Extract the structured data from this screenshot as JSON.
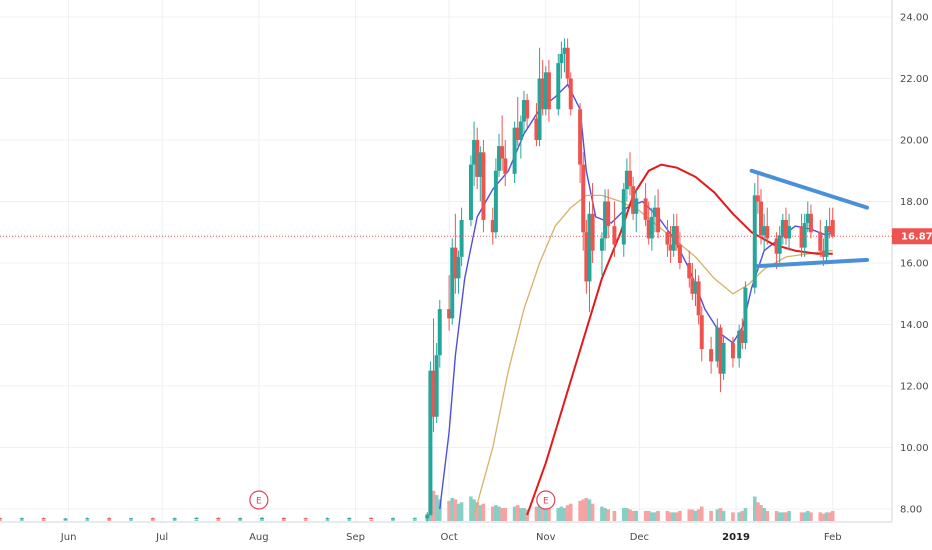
{
  "chart_data": {
    "type": "candlestick",
    "y_axis": {
      "ticks": [
        "24.00",
        "22.00",
        "20.00",
        "18.00",
        "16.00",
        "14.00",
        "12.00",
        "10.00",
        "8.00"
      ],
      "tick_values": [
        24,
        22,
        20,
        18,
        16,
        14,
        12,
        10,
        8
      ],
      "range": [
        7.8,
        24.3
      ],
      "position": "right"
    },
    "x_axis": {
      "labels": [
        "Jun",
        "Jul",
        "Aug",
        "Sep",
        "Oct",
        "Nov",
        "Dec",
        "2019",
        "Feb"
      ],
      "bold_labels": [
        "2019"
      ],
      "range": [
        "2018-05-10",
        "2019-02-20"
      ]
    },
    "grid": true,
    "current_price": {
      "value": 16.87,
      "label": "16.87",
      "color": "#ef5350"
    },
    "colors": {
      "up": "#26a69a",
      "down": "#ef5350",
      "vol_up": "#86cfc6",
      "vol_down": "#f5a3a3",
      "ma_fast": "#4f4fd8",
      "ma_mid": "#d4b26a",
      "ma_slow": "#e31a1c",
      "trendline": "#4a90d9",
      "event": "#e0405a"
    },
    "events": [
      {
        "date": "2018-08-01",
        "label": "E"
      },
      {
        "date": "2018-11-01",
        "label": "E"
      }
    ],
    "trendlines": [
      {
        "from": {
          "date": "2019-01-06",
          "price": 19.0
        },
        "to": {
          "date": "2019-02-12",
          "price": 17.8
        }
      },
      {
        "from": {
          "date": "2019-01-08",
          "price": 15.9
        },
        "to": {
          "date": "2019-02-12",
          "price": 16.1
        }
      }
    ],
    "moving_averages": [
      {
        "key": "fast",
        "points": [
          [
            "2018-09-28",
            8.0
          ],
          [
            "2018-10-01",
            10.5
          ],
          [
            "2018-10-03",
            13.0
          ],
          [
            "2018-10-06",
            15.5
          ],
          [
            "2018-10-10",
            17.5
          ],
          [
            "2018-10-15",
            18.4
          ],
          [
            "2018-10-20",
            19.0
          ],
          [
            "2018-10-25",
            20.2
          ],
          [
            "2018-10-30",
            21.0
          ],
          [
            "2018-11-04",
            21.4
          ],
          [
            "2018-11-08",
            21.8
          ],
          [
            "2018-11-12",
            21.0
          ],
          [
            "2018-11-14",
            19.0
          ],
          [
            "2018-11-17",
            17.5
          ],
          [
            "2018-11-22",
            17.3
          ],
          [
            "2018-11-27",
            17.8
          ],
          [
            "2018-12-02",
            18.0
          ],
          [
            "2018-12-07",
            17.5
          ],
          [
            "2018-12-12",
            16.8
          ],
          [
            "2018-12-17",
            15.8
          ],
          [
            "2018-12-22",
            14.5
          ],
          [
            "2018-12-27",
            13.7
          ],
          [
            "2018-12-31",
            13.4
          ],
          [
            "2019-01-03",
            13.9
          ],
          [
            "2019-01-06",
            15.2
          ],
          [
            "2019-01-10",
            16.4
          ],
          [
            "2019-01-15",
            16.8
          ],
          [
            "2019-01-20",
            17.2
          ],
          [
            "2019-01-25",
            17.1
          ],
          [
            "2019-01-30",
            16.9
          ],
          [
            "2019-02-01",
            17.0
          ]
        ]
      },
      {
        "key": "mid",
        "points": [
          [
            "2018-10-09",
            7.8
          ],
          [
            "2018-10-15",
            10.0
          ],
          [
            "2018-10-20",
            12.5
          ],
          [
            "2018-10-25",
            14.5
          ],
          [
            "2018-10-30",
            16.0
          ],
          [
            "2018-11-04",
            17.2
          ],
          [
            "2018-11-09",
            17.8
          ],
          [
            "2018-11-14",
            18.2
          ],
          [
            "2018-11-19",
            18.2
          ],
          [
            "2018-11-25",
            18.0
          ],
          [
            "2018-12-01",
            17.7
          ],
          [
            "2018-12-07",
            17.2
          ],
          [
            "2018-12-13",
            16.7
          ],
          [
            "2018-12-19",
            16.2
          ],
          [
            "2018-12-25",
            15.5
          ],
          [
            "2018-12-31",
            15.0
          ],
          [
            "2019-01-05",
            15.3
          ],
          [
            "2019-01-10",
            15.8
          ],
          [
            "2019-01-17",
            16.2
          ],
          [
            "2019-01-24",
            16.3
          ],
          [
            "2019-01-31",
            16.4
          ],
          [
            "2019-02-01",
            16.4
          ]
        ]
      },
      {
        "key": "slow",
        "points": [
          [
            "2018-10-26",
            7.8
          ],
          [
            "2018-11-01",
            9.5
          ],
          [
            "2018-11-07",
            11.5
          ],
          [
            "2018-11-13",
            13.5
          ],
          [
            "2018-11-19",
            15.5
          ],
          [
            "2018-11-25",
            17.0
          ],
          [
            "2018-11-29",
            18.2
          ],
          [
            "2018-12-04",
            19.0
          ],
          [
            "2018-12-08",
            19.2
          ],
          [
            "2018-12-13",
            19.1
          ],
          [
            "2018-12-19",
            18.8
          ],
          [
            "2018-12-25",
            18.3
          ],
          [
            "2018-12-31",
            17.6
          ],
          [
            "2019-01-06",
            17.0
          ],
          [
            "2019-01-13",
            16.6
          ],
          [
            "2019-01-20",
            16.4
          ],
          [
            "2019-01-27",
            16.3
          ],
          [
            "2019-02-01",
            16.3
          ]
        ]
      }
    ],
    "candles": [
      [
        "2018-05-10",
        7.7,
        7.72,
        7.66,
        7.69,
        2
      ],
      [
        "2018-05-17",
        7.69,
        7.72,
        7.65,
        7.7,
        2
      ],
      [
        "2018-05-24",
        7.7,
        7.73,
        7.67,
        7.68,
        2
      ],
      [
        "2018-05-31",
        7.68,
        7.71,
        7.65,
        7.69,
        3
      ],
      [
        "2018-06-07",
        7.69,
        7.72,
        7.66,
        7.7,
        2
      ],
      [
        "2018-06-14",
        7.7,
        7.73,
        7.67,
        7.69,
        3
      ],
      [
        "2018-06-21",
        7.69,
        7.71,
        7.66,
        7.7,
        2
      ],
      [
        "2018-06-28",
        7.7,
        7.72,
        7.67,
        7.68,
        3
      ],
      [
        "2018-07-05",
        7.68,
        7.72,
        7.66,
        7.7,
        3
      ],
      [
        "2018-07-12",
        7.7,
        7.73,
        7.67,
        7.71,
        2
      ],
      [
        "2018-07-19",
        7.71,
        7.73,
        7.68,
        7.69,
        3
      ],
      [
        "2018-07-26",
        7.69,
        7.72,
        7.66,
        7.7,
        4
      ],
      [
        "2018-08-02",
        7.7,
        7.74,
        7.67,
        7.71,
        4
      ],
      [
        "2018-08-09",
        7.71,
        7.73,
        7.68,
        7.7,
        3
      ],
      [
        "2018-08-16",
        7.7,
        7.72,
        7.67,
        7.69,
        2
      ],
      [
        "2018-08-23",
        7.69,
        7.72,
        7.66,
        7.7,
        2
      ],
      [
        "2018-08-30",
        7.7,
        7.72,
        7.67,
        7.71,
        3
      ],
      [
        "2018-09-06",
        7.71,
        7.73,
        7.68,
        7.69,
        2
      ],
      [
        "2018-09-13",
        7.69,
        7.72,
        7.66,
        7.7,
        3
      ],
      [
        "2018-09-20",
        7.7,
        7.72,
        7.67,
        7.7,
        2
      ],
      [
        "2018-09-24",
        7.7,
        7.9,
        7.6,
        7.8,
        10
      ],
      [
        "2018-09-25",
        7.8,
        12.8,
        7.8,
        12.5,
        48
      ],
      [
        "2018-09-26",
        12.5,
        14.2,
        10.5,
        11.0,
        42
      ],
      [
        "2018-09-27",
        11.0,
        13.4,
        10.8,
        13.0,
        36
      ],
      [
        "2018-09-28",
        13.0,
        14.8,
        12.6,
        14.5,
        30
      ],
      [
        "2018-10-01",
        14.5,
        15.6,
        13.8,
        14.2,
        28
      ],
      [
        "2018-10-02",
        14.2,
        16.8,
        14.0,
        16.5,
        32
      ],
      [
        "2018-10-03",
        16.5,
        17.6,
        15.0,
        15.5,
        30
      ],
      [
        "2018-10-04",
        15.5,
        16.4,
        15.0,
        16.2,
        24
      ],
      [
        "2018-10-05",
        16.2,
        17.8,
        15.9,
        17.4,
        26
      ],
      [
        "2018-10-08",
        17.4,
        19.5,
        17.2,
        19.2,
        34
      ],
      [
        "2018-10-09",
        19.2,
        20.6,
        18.5,
        20.0,
        30
      ],
      [
        "2018-10-10",
        20.0,
        20.4,
        18.4,
        18.8,
        26
      ],
      [
        "2018-10-11",
        18.8,
        19.8,
        18.0,
        19.6,
        22
      ],
      [
        "2018-10-12",
        19.6,
        20.0,
        17.0,
        17.4,
        24
      ],
      [
        "2018-10-15",
        17.4,
        17.8,
        16.6,
        17.0,
        20
      ],
      [
        "2018-10-16",
        17.0,
        19.4,
        16.8,
        19.0,
        22
      ],
      [
        "2018-10-17",
        19.0,
        20.2,
        18.8,
        19.8,
        20
      ],
      [
        "2018-10-18",
        19.8,
        20.8,
        19.0,
        19.4,
        18
      ],
      [
        "2018-10-19",
        19.4,
        20.0,
        18.5,
        18.9,
        18
      ],
      [
        "2018-10-22",
        18.9,
        20.6,
        18.6,
        20.4,
        20
      ],
      [
        "2018-10-23",
        20.4,
        21.4,
        19.8,
        20.0,
        22
      ],
      [
        "2018-10-24",
        20.0,
        20.8,
        19.4,
        20.6,
        18
      ],
      [
        "2018-10-25",
        20.6,
        21.6,
        20.2,
        21.3,
        18
      ],
      [
        "2018-10-26",
        21.3,
        21.5,
        20.4,
        20.7,
        16
      ],
      [
        "2018-10-29",
        20.7,
        21.2,
        19.8,
        20.0,
        20
      ],
      [
        "2018-10-30",
        20.0,
        23.0,
        19.8,
        22.0,
        26
      ],
      [
        "2018-10-31",
        22.0,
        22.6,
        20.8,
        21.0,
        22
      ],
      [
        "2018-11-01",
        21.0,
        22.4,
        20.8,
        22.2,
        20
      ],
      [
        "2018-11-02",
        22.2,
        22.6,
        20.6,
        21.0,
        18
      ],
      [
        "2018-11-05",
        21.0,
        22.8,
        20.8,
        22.5,
        18
      ],
      [
        "2018-11-06",
        22.5,
        23.2,
        22.0,
        22.8,
        20
      ],
      [
        "2018-11-07",
        22.8,
        23.3,
        22.2,
        23.0,
        18
      ],
      [
        "2018-11-08",
        23.0,
        23.3,
        21.8,
        22.0,
        22
      ],
      [
        "2018-11-09",
        22.0,
        22.2,
        20.8,
        21.0,
        24
      ],
      [
        "2018-11-12",
        21.0,
        21.2,
        18.6,
        19.2,
        28
      ],
      [
        "2018-11-13",
        19.2,
        19.6,
        16.4,
        17.0,
        30
      ],
      [
        "2018-11-14",
        17.0,
        17.4,
        15.0,
        15.4,
        32
      ],
      [
        "2018-11-15",
        15.4,
        18.0,
        14.4,
        17.6,
        30
      ],
      [
        "2018-11-16",
        17.6,
        18.6,
        16.0,
        16.4,
        24
      ],
      [
        "2018-11-19",
        16.4,
        17.0,
        15.6,
        16.8,
        20
      ],
      [
        "2018-11-20",
        16.8,
        18.4,
        16.4,
        18.0,
        18
      ],
      [
        "2018-11-21",
        18.0,
        18.4,
        16.8,
        17.2,
        16
      ],
      [
        "2018-11-23",
        17.2,
        18.0,
        16.2,
        16.6,
        14
      ],
      [
        "2018-11-26",
        16.6,
        18.6,
        16.2,
        18.4,
        18
      ],
      [
        "2018-11-27",
        18.4,
        19.4,
        18.0,
        19.0,
        18
      ],
      [
        "2018-11-28",
        19.0,
        19.6,
        18.2,
        18.5,
        16
      ],
      [
        "2018-11-29",
        18.5,
        18.8,
        17.4,
        17.6,
        14
      ],
      [
        "2018-11-30",
        17.6,
        18.4,
        17.0,
        18.1,
        14
      ],
      [
        "2018-12-03",
        18.1,
        18.6,
        17.2,
        17.4,
        14
      ],
      [
        "2018-12-04",
        17.4,
        18.0,
        16.6,
        16.8,
        14
      ],
      [
        "2018-12-05",
        16.8,
        17.8,
        16.4,
        17.5,
        12
      ],
      [
        "2018-12-06",
        17.5,
        18.2,
        17.0,
        17.8,
        12
      ],
      [
        "2018-12-07",
        17.8,
        18.4,
        16.8,
        17.0,
        14
      ],
      [
        "2018-12-10",
        17.0,
        17.4,
        16.2,
        16.6,
        14
      ],
      [
        "2018-12-11",
        16.6,
        17.2,
        16.0,
        16.4,
        12
      ],
      [
        "2018-12-12",
        16.4,
        17.6,
        16.2,
        17.2,
        12
      ],
      [
        "2018-12-13",
        17.2,
        17.6,
        16.4,
        16.6,
        12
      ],
      [
        "2018-12-14",
        16.6,
        17.0,
        15.8,
        16.0,
        14
      ],
      [
        "2018-12-17",
        16.0,
        16.4,
        15.2,
        15.5,
        16
      ],
      [
        "2018-12-18",
        15.5,
        16.0,
        14.8,
        15.0,
        16
      ],
      [
        "2018-12-19",
        15.0,
        15.8,
        14.6,
        15.4,
        14
      ],
      [
        "2018-12-20",
        15.4,
        15.6,
        14.0,
        14.3,
        16
      ],
      [
        "2018-12-21",
        14.3,
        14.6,
        12.8,
        13.2,
        20
      ],
      [
        "2018-12-24",
        13.2,
        13.6,
        12.4,
        12.8,
        14
      ],
      [
        "2018-12-26",
        12.8,
        14.2,
        12.6,
        13.9,
        16
      ],
      [
        "2018-12-27",
        13.9,
        14.0,
        11.8,
        12.4,
        18
      ],
      [
        "2018-12-28",
        12.4,
        13.6,
        12.2,
        13.4,
        14
      ],
      [
        "2018-12-31",
        13.4,
        13.6,
        12.6,
        12.9,
        12
      ],
      [
        "2019-01-02",
        12.9,
        14.0,
        12.6,
        13.8,
        12
      ],
      [
        "2019-01-03",
        13.8,
        14.2,
        13.2,
        13.4,
        14
      ],
      [
        "2019-01-04",
        13.4,
        15.4,
        13.2,
        15.2,
        18
      ],
      [
        "2019-01-07",
        15.2,
        18.6,
        15.0,
        18.2,
        34
      ],
      [
        "2019-01-08",
        18.2,
        19.0,
        17.6,
        18.0,
        26
      ],
      [
        "2019-01-09",
        18.0,
        18.4,
        16.6,
        16.9,
        22
      ],
      [
        "2019-01-10",
        16.9,
        17.6,
        16.4,
        17.2,
        18
      ],
      [
        "2019-01-11",
        17.2,
        17.8,
        16.6,
        16.8,
        14
      ],
      [
        "2019-01-14",
        16.8,
        17.0,
        15.8,
        16.3,
        14
      ],
      [
        "2019-01-15",
        16.3,
        17.2,
        16.0,
        16.9,
        12
      ],
      [
        "2019-01-16",
        16.9,
        17.6,
        16.6,
        17.4,
        12
      ],
      [
        "2019-01-17",
        17.4,
        17.8,
        16.6,
        16.8,
        12
      ],
      [
        "2019-01-18",
        16.8,
        17.6,
        16.4,
        17.2,
        14
      ],
      [
        "2019-01-22",
        17.2,
        17.6,
        16.2,
        16.5,
        12
      ],
      [
        "2019-01-23",
        16.5,
        17.6,
        16.2,
        17.3,
        12
      ],
      [
        "2019-01-24",
        17.3,
        18.0,
        17.0,
        17.6,
        14
      ],
      [
        "2019-01-25",
        17.6,
        17.9,
        16.8,
        17.0,
        12
      ],
      [
        "2019-01-28",
        17.0,
        17.4,
        16.2,
        16.4,
        12
      ],
      [
        "2019-01-29",
        16.4,
        16.8,
        15.9,
        16.2,
        10
      ],
      [
        "2019-01-30",
        16.2,
        17.4,
        16.0,
        17.2,
        12
      ],
      [
        "2019-01-31",
        17.2,
        17.8,
        16.8,
        17.0,
        12
      ],
      [
        "2019-02-01",
        17.4,
        17.8,
        16.8,
        16.87,
        14
      ]
    ]
  }
}
